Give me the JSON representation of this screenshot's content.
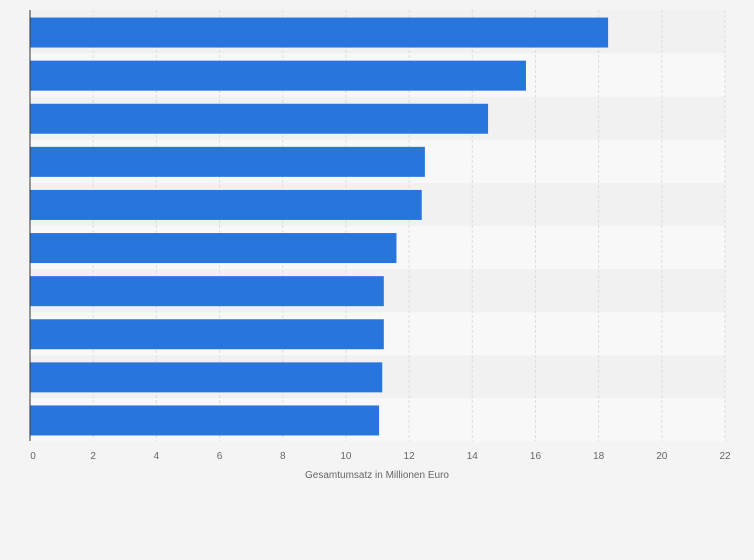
{
  "chart_data": {
    "type": "bar",
    "orientation": "horizontal",
    "categories": [
      "",
      "",
      "",
      "",
      "",
      "",
      "",
      "",
      "",
      ""
    ],
    "values": [
      18.3,
      15.7,
      14.5,
      12.5,
      12.4,
      11.6,
      11.2,
      11.2,
      11.15,
      11.05
    ],
    "xlabel": "Gesamtumsatz in Millionen Euro",
    "ylabel": "",
    "xlim": [
      0,
      22
    ],
    "x_ticks": [
      "0",
      "2",
      "4",
      "6",
      "8",
      "10",
      "12",
      "14",
      "16",
      "18",
      "20",
      "22"
    ],
    "grid": true,
    "legend": "none",
    "colors": {
      "bar": "#2876dd",
      "background": "#f4f4f4",
      "band_light": "#f8f8f8",
      "band_dark": "#f1f1f1",
      "gridline": "#dddddd",
      "axis": "#333333",
      "text": "#666666"
    }
  }
}
